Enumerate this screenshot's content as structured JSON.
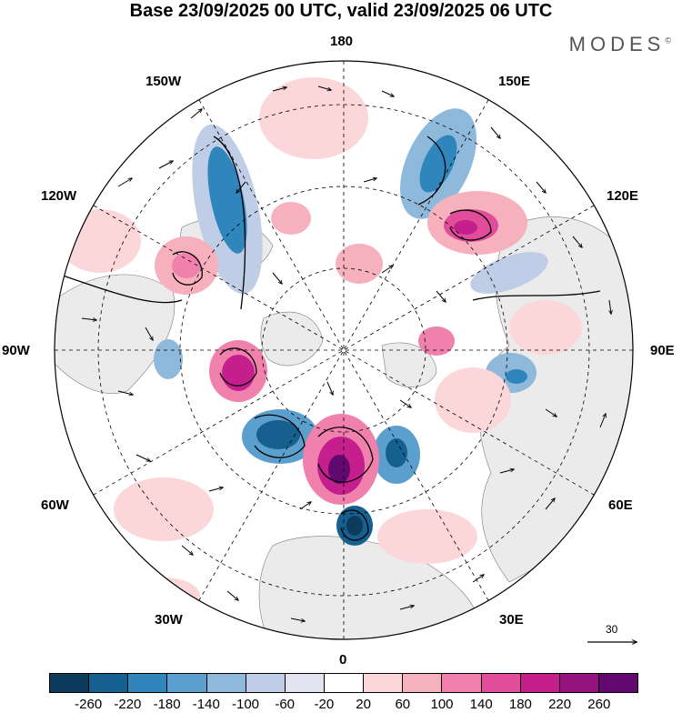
{
  "title": "Base 23/09/2025 00 UTC, valid 23/09/2025 06 UTC",
  "brand": {
    "name": "MODES",
    "mark": "©"
  },
  "map": {
    "projection": "north-polar-stereographic",
    "longitude_labels": {
      "top": "180",
      "top_right": "150E",
      "right_upper": "120E",
      "right": "90E",
      "right_lower": "60E",
      "bottom_right": "30E",
      "bottom": "0",
      "bottom_left": "30W",
      "left_lower": "60W",
      "left": "90W",
      "left_upper": "120W",
      "top_left": "150W"
    },
    "wind_reference_value": "30",
    "colors": {
      "land_gray": "#ebebeb",
      "grid": "#000000"
    }
  },
  "colorbar": {
    "colors": [
      "#0d3b5c",
      "#15608f",
      "#2f86bd",
      "#5a9fcd",
      "#8fb9db",
      "#bfcde6",
      "#e2e2f0",
      "#ffffff",
      "#fbd7d9",
      "#f6b1bd",
      "#f080ac",
      "#e24d9b",
      "#c41f8d",
      "#93127e",
      "#62096f"
    ],
    "ticks": [
      "-260",
      "-220",
      "-180",
      "-140",
      "-100",
      "-60",
      "-20",
      "20",
      "60",
      "100",
      "140",
      "180",
      "220",
      "260"
    ]
  }
}
